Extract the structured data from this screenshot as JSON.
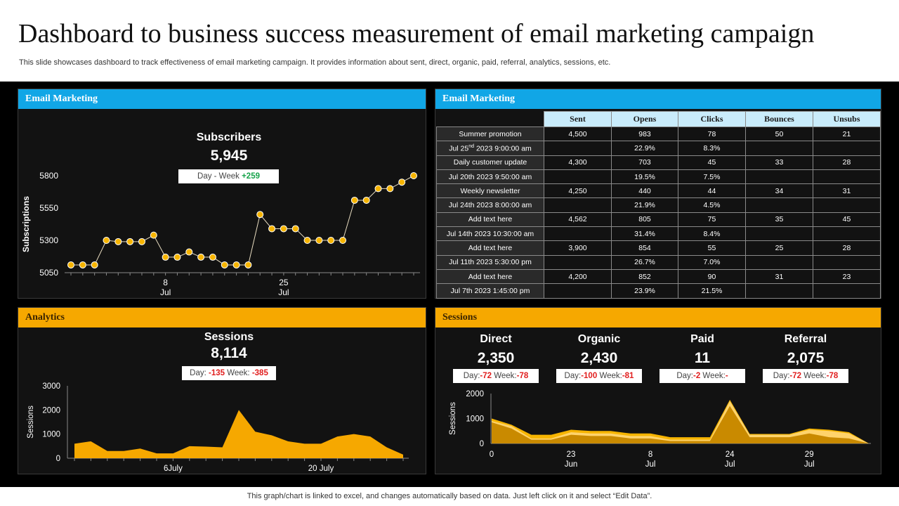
{
  "header": {
    "title": "Dashboard to business success measurement of email marketing campaign",
    "subtitle": "This slide showcases dashboard to track effectiveness of email marketing campaign. It provides information about sent, direct, organic, paid, referral, analytics, sessions, etc."
  },
  "footnote": "This graph/chart is linked to excel, and changes automatically based on data. Just left click on it and select “Edit Data”.",
  "colors": {
    "email_header": "#11a6e6",
    "analytics_header": "#f6a800",
    "point": "#f6b400",
    "area": "#f6a800",
    "positive": "#16a34a",
    "negative": "#e11d1d"
  },
  "subscribers_panel": {
    "header": "Email Marketing",
    "title": "Subscribers",
    "value": "5,945",
    "delta_label": "Day - Week",
    "delta_value": "+259"
  },
  "table_panel": {
    "header": "Email Marketing",
    "columns": [
      "Sent",
      "Opens",
      "Clicks",
      "Bounces",
      "Unsubs"
    ],
    "rows": [
      {
        "label": "Summer promotion",
        "cells": [
          "4,500",
          "983",
          "78",
          "50",
          "21"
        ]
      },
      {
        "label": "Jul 25nd 2023 9:00:00 am",
        "cells": [
          "",
          "22.9%",
          "8.3%",
          "",
          ""
        ]
      },
      {
        "label": "Daily customer update",
        "cells": [
          "4,300",
          "703",
          "45",
          "33",
          "28"
        ]
      },
      {
        "label": "Jul 20th 2023 9:50:00 am",
        "cells": [
          "",
          "19.5%",
          "7.5%",
          "",
          ""
        ]
      },
      {
        "label": "Weekly newsletter",
        "cells": [
          "4,250",
          "440",
          "44",
          "34",
          "31"
        ]
      },
      {
        "label": "Jul 24th 2023 8:00:00 am",
        "cells": [
          "",
          "21.9%",
          "4.5%",
          "",
          ""
        ]
      },
      {
        "label": "Add text here",
        "cells": [
          "4,562",
          "805",
          "75",
          "35",
          "45"
        ]
      },
      {
        "label": "Jul 14th 2023 10:30:00 am",
        "cells": [
          "",
          "31.4%",
          "8.4%",
          "",
          ""
        ]
      },
      {
        "label": "Add text here",
        "cells": [
          "3,900",
          "854",
          "55",
          "25",
          "28"
        ]
      },
      {
        "label": "Jul 11th 2023 5:30:00 pm",
        "cells": [
          "",
          "26.7%",
          "7.0%",
          "",
          ""
        ]
      },
      {
        "label": "Add text here",
        "cells": [
          "4,200",
          "852",
          "90",
          "31",
          "23"
        ]
      },
      {
        "label": "Jul 7th 2023 1:45:00 pm",
        "cells": [
          "",
          "23.9%",
          "21.5%",
          "",
          ""
        ]
      }
    ]
  },
  "analytics_panel": {
    "header": "Analytics",
    "title": "Sessions",
    "value": "8,114",
    "day_label": "Day:",
    "day_value": "-135",
    "week_label": "Week:",
    "week_value": "-385"
  },
  "sessions_panel": {
    "header": "Sessions",
    "metrics": [
      {
        "name": "Direct",
        "value": "2,350",
        "day": "-72",
        "week": "-78"
      },
      {
        "name": "Organic",
        "value": "2,430",
        "day": "-100",
        "week": "-81"
      },
      {
        "name": "Paid",
        "value": "11",
        "day": "-2",
        "week": "-"
      },
      {
        "name": "Referral",
        "value": "2,075",
        "day": "-72",
        "week": "-78"
      }
    ],
    "day_label": "Day:",
    "week_label": "Week:"
  },
  "chart_data": [
    {
      "type": "line",
      "ylabel": "Subscriptions",
      "ylim": [
        5050,
        5800
      ],
      "yticks": [
        "5050",
        "5300",
        "5550",
        "5800"
      ],
      "xtick_labels": [
        {
          "day": "8",
          "month": "Jul",
          "index": 8
        },
        {
          "day": "25",
          "month": "Jul",
          "index": 18
        }
      ],
      "values": [
        5110,
        5110,
        5110,
        5300,
        5290,
        5290,
        5290,
        5340,
        5170,
        5170,
        5210,
        5170,
        5170,
        5110,
        5110,
        5110,
        5500,
        5390,
        5390,
        5390,
        5300,
        5300,
        5300,
        5300,
        5610,
        5610,
        5700,
        5700,
        5750,
        5800
      ]
    },
    {
      "type": "area",
      "ylabel": "Sessions",
      "ylim": [
        0,
        3000
      ],
      "yticks": [
        "0",
        "1000",
        "2000",
        "3000"
      ],
      "xtick_labels": [
        {
          "label": "6July",
          "index": 6
        },
        {
          "label": "20 July",
          "index": 15
        }
      ],
      "values": [
        600,
        700,
        300,
        300,
        400,
        200,
        200,
        500,
        480,
        450,
        2000,
        1100,
        950,
        700,
        600,
        600,
        900,
        1000,
        900,
        450,
        150
      ]
    },
    {
      "type": "area",
      "ylabel": "Sessions",
      "ylim": [
        0,
        2000
      ],
      "yticks": [
        "0",
        "1000",
        "2000"
      ],
      "xtick_labels": [
        {
          "day": "0",
          "month": "",
          "index": 0
        },
        {
          "day": "23",
          "month": "Jun",
          "index": 4
        },
        {
          "day": "8",
          "month": "Jul",
          "index": 8
        },
        {
          "day": "24",
          "month": "Jul",
          "index": 12
        },
        {
          "day": "29",
          "month": "Jul",
          "index": 16
        }
      ],
      "series": [
        {
          "values": [
            900,
            700,
            200,
            200,
            450,
            400,
            400,
            300,
            300,
            150,
            150,
            150,
            1700,
            350,
            350,
            350,
            550,
            500,
            400,
            0
          ]
        },
        {
          "values": [
            1000,
            750,
            350,
            350,
            550,
            500,
            500,
            400,
            400,
            250,
            250,
            250,
            1750,
            380,
            380,
            380,
            600,
            550,
            450,
            0
          ]
        },
        {
          "values": [
            850,
            600,
            150,
            150,
            350,
            300,
            300,
            200,
            200,
            100,
            100,
            100,
            1500,
            250,
            250,
            250,
            400,
            250,
            200,
            0
          ]
        }
      ]
    }
  ]
}
